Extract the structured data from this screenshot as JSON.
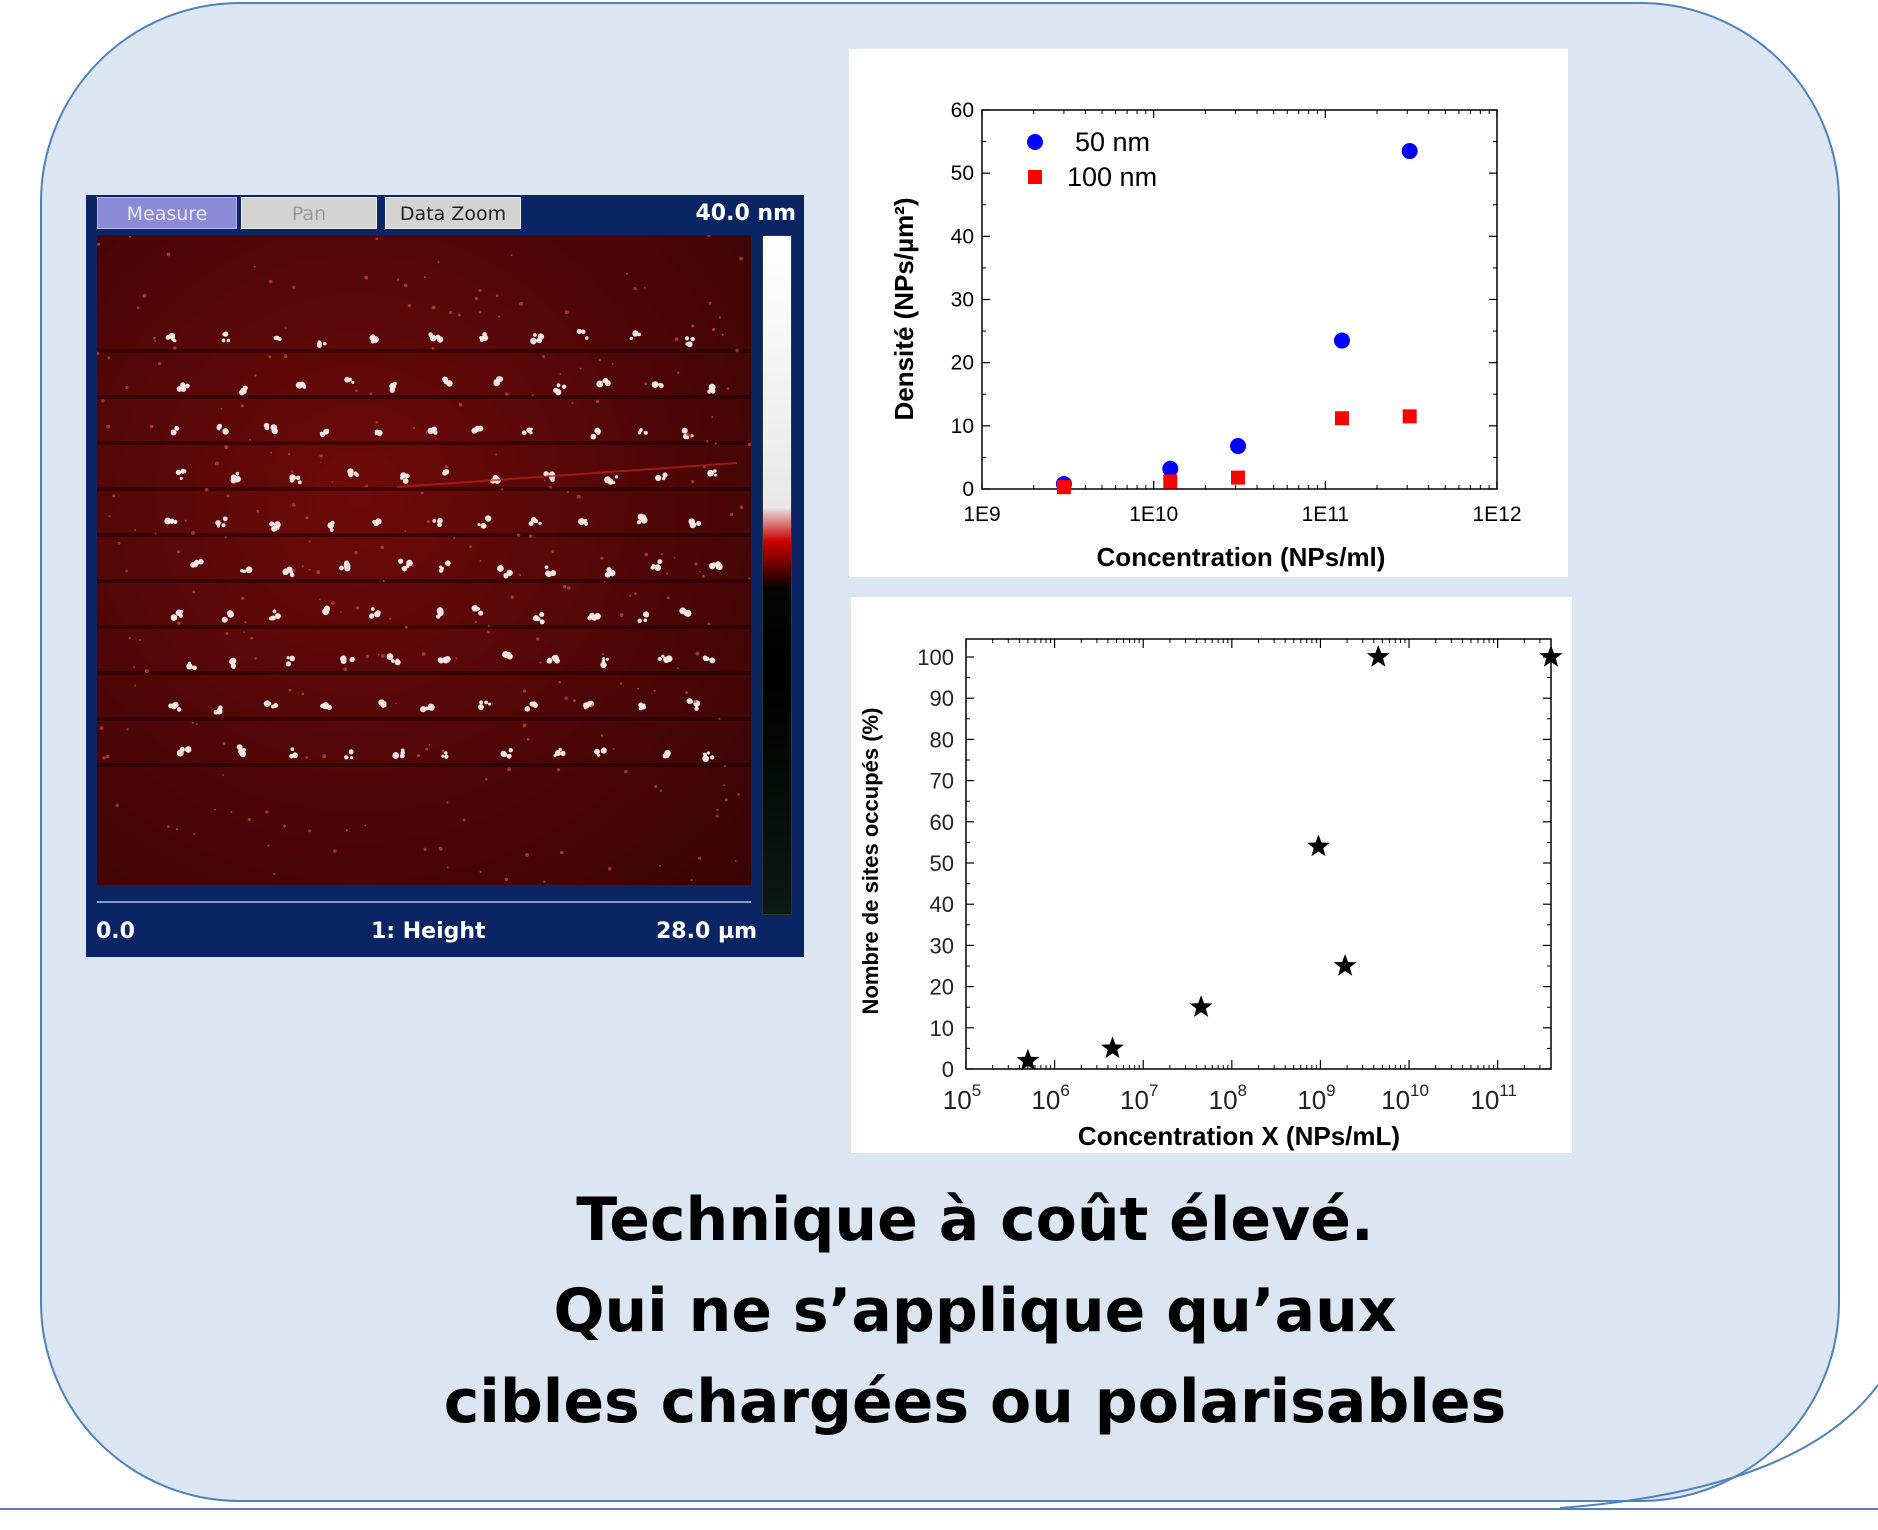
{
  "afm": {
    "buttons": {
      "measure": "Measure",
      "pan": "Pan",
      "data_zoom": "Data Zoom"
    },
    "scale_top": "40.0 nm",
    "bottom_left": "0.0",
    "bottom_center": "1: Height",
    "bottom_right": "28.0 µm"
  },
  "caption": {
    "line1": "Technique à coût élevé.",
    "line2": "Qui ne s’applique qu’aux",
    "line3": "cibles chargées ou polarisables"
  },
  "colors": {
    "panel_bg": "#dce6f2",
    "panel_border": "#4f81bd",
    "series_50nm": "#0000ff",
    "series_100nm": "#ff0000",
    "stars": "#000000"
  },
  "chart_data": [
    {
      "type": "scatter",
      "title": "",
      "xlabel": "Concentration (NPs/ml)",
      "ylabel": "Densité (NPs/µm²)",
      "xscale": "log",
      "xlim": [
        1000000000.0,
        1000000000000.0
      ],
      "ylim": [
        0,
        60
      ],
      "x_ticks": [
        "1E9",
        "1E10",
        "1E11",
        "1E12"
      ],
      "y_ticks": [
        "0",
        "10",
        "20",
        "30",
        "40",
        "50",
        "60"
      ],
      "legend": "top-left",
      "series": [
        {
          "name": "50 nm",
          "marker": "circle",
          "color": "#0000ff",
          "x": [
            3000000000.0,
            12500000000.0,
            31000000000.0,
            125000000000.0,
            310000000000.0
          ],
          "y": [
            0.8,
            3.2,
            6.8,
            23.5,
            53.5
          ]
        },
        {
          "name": "100 nm",
          "marker": "square",
          "color": "#ff0000",
          "x": [
            3000000000.0,
            12500000000.0,
            31000000000.0,
            125000000000.0,
            310000000000.0
          ],
          "y": [
            0.3,
            1.2,
            1.8,
            11.2,
            11.5
          ]
        }
      ]
    },
    {
      "type": "scatter",
      "title": "",
      "xlabel": "Concentration X (NPs/mL)",
      "ylabel": "Nombre de sites occupés  (%)",
      "xscale": "log",
      "xlim": [
        100000.0,
        400000000000.0
      ],
      "ylim": [
        0,
        100
      ],
      "x_ticks": [
        "10^5",
        "10^6",
        "10^7",
        "10^8",
        "10^9",
        "10^10",
        "10^11"
      ],
      "y_ticks": [
        "0",
        "10",
        "20",
        "30",
        "40",
        "50",
        "60",
        "70",
        "80",
        "90",
        "100"
      ],
      "series": [
        {
          "marker": "star",
          "color": "#000000",
          "x": [
            500000.0,
            4500000.0,
            45000000.0,
            950000000.0,
            1900000000.0,
            4500000000.0,
            400000000000.0
          ],
          "y": [
            2,
            5,
            15,
            54,
            25,
            100,
            100
          ]
        }
      ]
    }
  ]
}
